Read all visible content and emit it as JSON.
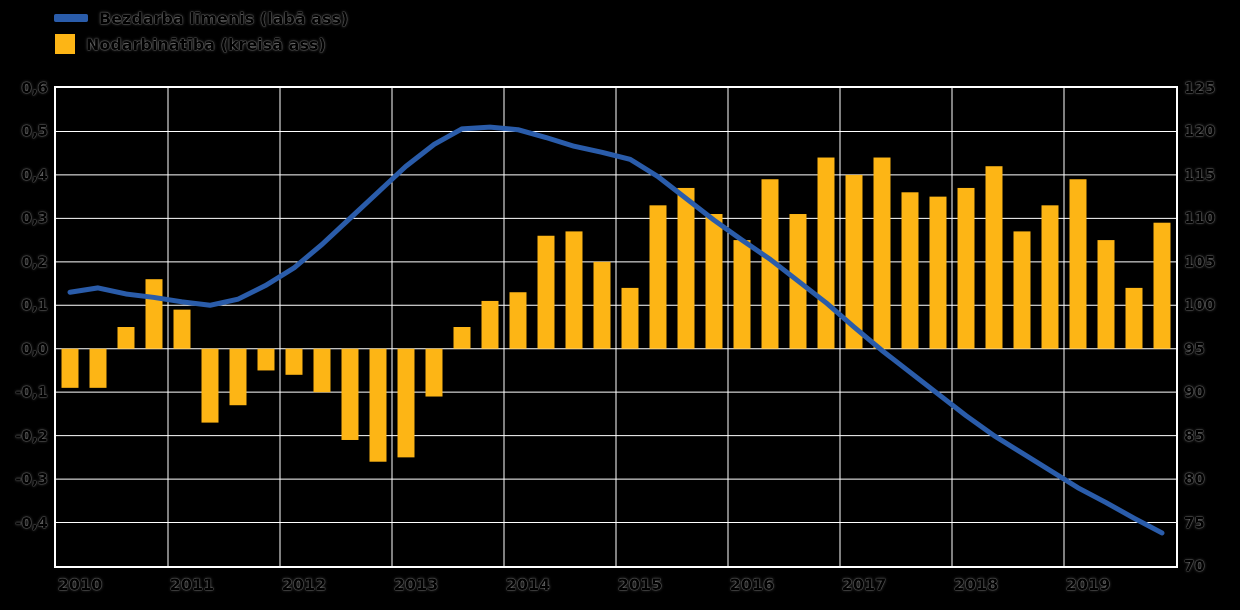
{
  "legend": {
    "line": {
      "label": "Bezdarba līmenis (labā ass)",
      "color": "#2A5CAA"
    },
    "bars": {
      "label": "Nodarbinātība (kreisā ass)",
      "color": "#FDB515"
    }
  },
  "chart_data": {
    "type": "combo",
    "background": "#000000",
    "grid": true,
    "legend_position": "top-left",
    "categories": [
      "2010 Q1",
      "2010 Q2",
      "2010 Q3",
      "2010 Q4",
      "2011 Q1",
      "2011 Q2",
      "2011 Q3",
      "2011 Q4",
      "2012 Q1",
      "2012 Q2",
      "2012 Q3",
      "2012 Q4",
      "2013 Q1",
      "2013 Q2",
      "2013 Q3",
      "2013 Q4",
      "2014 Q1",
      "2014 Q2",
      "2014 Q3",
      "2014 Q4",
      "2015 Q1",
      "2015 Q2",
      "2015 Q3",
      "2015 Q4",
      "2016 Q1",
      "2016 Q2",
      "2016 Q3",
      "2016 Q4",
      "2017 Q1",
      "2017 Q2",
      "2017 Q3",
      "2017 Q4",
      "2018 Q1",
      "2018 Q2",
      "2018 Q3",
      "2018 Q4",
      "2019 Q1",
      "2019 Q2",
      "2019 Q3",
      "2019 Q4"
    ],
    "x_tick_labels": [
      "2010",
      "2011",
      "2012",
      "2013",
      "2014",
      "2015",
      "2016",
      "2017",
      "2018",
      "2019"
    ],
    "left_axis": {
      "min": -0.5,
      "max": 0.6,
      "tick_step": 0.1,
      "tick_labels": [
        "0,6",
        "0,5",
        "0,4",
        "0,3",
        "0,2",
        "0,1",
        "0,0",
        "-0,1",
        "-0,2",
        "-0,3",
        "-0,4"
      ]
    },
    "right_axis": {
      "min": 70,
      "max": 125,
      "tick_step": 5,
      "tick_labels": [
        "125",
        "120",
        "115",
        "110",
        "105",
        "100",
        "95",
        "90",
        "85",
        "80",
        "75",
        "70"
      ]
    },
    "series": [
      {
        "name": "Nodarbinātība (kreisā ass)",
        "type": "bar",
        "axis": "left",
        "color": "#FDB515",
        "values": [
          -0.09,
          -0.09,
          0.05,
          0.16,
          0.09,
          -0.17,
          -0.13,
          -0.05,
          -0.06,
          -0.1,
          -0.21,
          -0.26,
          -0.25,
          -0.11,
          0.05,
          0.11,
          0.13,
          0.26,
          0.27,
          0.2,
          0.14,
          0.33,
          0.37,
          0.31,
          0.25,
          0.39,
          0.31,
          0.44,
          0.4,
          0.44,
          0.36,
          0.35,
          0.37,
          0.42,
          0.27,
          0.33,
          0.39,
          0.25,
          0.14,
          0.29
        ]
      },
      {
        "name": "Bezdarba līmenis (labā ass)",
        "type": "line",
        "axis": "right",
        "color": "#2A5CAA",
        "values": [
          101.5,
          102.0,
          101.3,
          100.9,
          100.4,
          100.0,
          100.7,
          102.3,
          104.3,
          107.0,
          110.0,
          113.0,
          116.0,
          118.5,
          120.3,
          120.5,
          120.2,
          119.3,
          118.3,
          117.6,
          116.8,
          114.8,
          112.3,
          109.8,
          107.5,
          105.3,
          102.8,
          100.3,
          97.5,
          94.8,
          92.3,
          89.8,
          87.3,
          85.0,
          83.0,
          81.0,
          79.0,
          77.3,
          75.5,
          73.8
        ]
      }
    ]
  }
}
